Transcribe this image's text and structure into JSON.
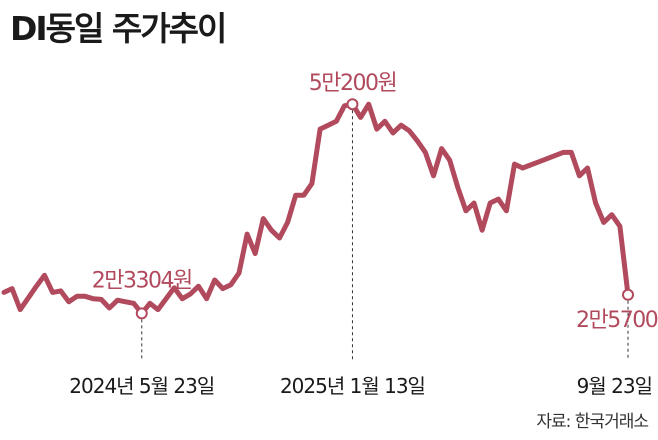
{
  "title": "DI동일 주가추이",
  "source": "자료: 한국거래소",
  "colors": {
    "line": "#b24a5e",
    "text": "#1a1a1a",
    "callout": "#b24a5e"
  },
  "chart_data": {
    "type": "line",
    "title": "DI동일 주가추이",
    "xlabel": "",
    "ylabel": "",
    "unit": "원",
    "grid": false,
    "legend": "none",
    "ylim": [
      15000,
      60000
    ],
    "series": [
      {
        "values": [
          26000,
          26500,
          23800,
          25300,
          26800,
          28200,
          26000,
          26200,
          24800,
          25500,
          25500,
          25200,
          25100,
          24000,
          25000,
          24800,
          24600,
          23304,
          24600,
          23800,
          25200,
          26600,
          25200,
          25800,
          26800,
          25200,
          27600,
          26500,
          27000,
          28500,
          33500,
          31000,
          35500,
          34000,
          33000,
          35000,
          38500,
          38500,
          40000,
          47000,
          47500,
          48000,
          50000,
          50200,
          48500,
          50200,
          47000,
          48000,
          46500,
          47500,
          46800,
          45500,
          44000,
          41000,
          44500,
          43000,
          39500,
          36500,
          37500,
          34000,
          37500,
          38000,
          36500,
          42500,
          42000,
          42400,
          42800,
          43200,
          43600,
          44000,
          44000,
          41000,
          42000,
          37500,
          35000,
          36000,
          34500,
          25700
        ]
      }
    ],
    "annotations": [
      {
        "text": "2만3304원",
        "index": 17,
        "value": 23304
      },
      {
        "text": "5만200원",
        "index": 43,
        "value": 50200
      },
      {
        "text": "2만5700원",
        "index": 77,
        "value": 25700
      }
    ],
    "date_labels": [
      {
        "text": "2024년 5월 23일",
        "index": 17
      },
      {
        "text": "2025년 1월 13일",
        "index": 43
      },
      {
        "text": "9월 23일",
        "index": 77
      }
    ]
  }
}
